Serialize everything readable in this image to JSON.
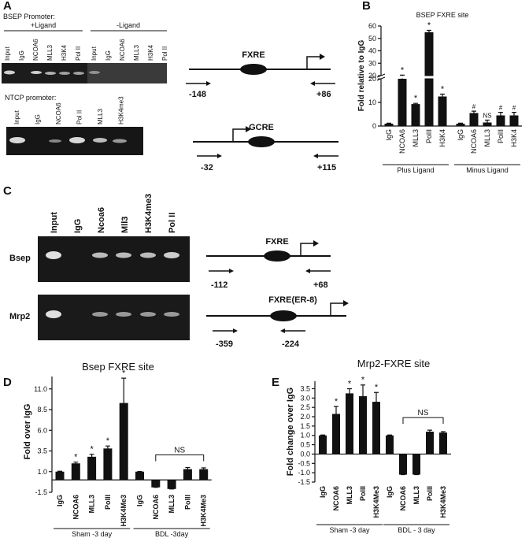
{
  "panels": {
    "A": {
      "letter": "A",
      "bsep": {
        "title": "BSEP Promoter:",
        "plus": "+Ligand",
        "minus": "-Ligand",
        "lanes": [
          "Input",
          "IgG",
          "NCOA6",
          "MLL3",
          "H3K4",
          "Pol II",
          "Input",
          "IgG",
          "NCOA6",
          "MLL3",
          "H3K4",
          "Pol II"
        ]
      },
      "ntcp": {
        "title": "NTCP promoter:",
        "lanes": [
          "Input",
          "IgG",
          "NCOA6",
          "Pol II",
          "MLL3",
          "H3K4me3"
        ]
      },
      "diagram1": {
        "element": "FXRE",
        "left": "-148",
        "right": "+86"
      },
      "diagram2": {
        "element": "GCRE",
        "left": "-32",
        "right": "+115"
      }
    },
    "C": {
      "letter": "C",
      "lanes": [
        "Input",
        "IgG",
        "Ncoa6",
        "Mll3",
        "H3K4me3",
        "Pol II"
      ],
      "rows": [
        "Bsep",
        "Mrp2"
      ],
      "diagram1": {
        "element": "FXRE",
        "left": "-112",
        "right": "+68"
      },
      "diagram2": {
        "element": "FXRE(ER-8)",
        "left": "-359",
        "right": "-224"
      }
    }
  },
  "chart_data": [
    {
      "panel": "B",
      "type": "bar",
      "title": "BSEP FXRE site",
      "y_label": "Fold relative to IgG",
      "categories": [
        "IgG",
        "NCOA6",
        "MLL3",
        "PolII",
        "H3K4",
        "IgG",
        "NCOA6",
        "MLL3",
        "PolII",
        "H3K4"
      ],
      "values": [
        1,
        20,
        9.3,
        55,
        12.5,
        1,
        5.5,
        1.5,
        4.5,
        4.5
      ],
      "errors": [
        0.2,
        0.4,
        0.3,
        1.5,
        1,
        0.2,
        0.8,
        1,
        1.3,
        1.3
      ],
      "annotations": [
        null,
        "*",
        "*",
        "*",
        "*",
        null,
        "#",
        "NS",
        "#",
        "#"
      ],
      "groups": [
        "Plus Ligand",
        "Minus Ligand"
      ],
      "color": "#111111",
      "segments": [
        {
          "ylim": [
            0,
            20
          ],
          "yticks": [
            0,
            10,
            20
          ]
        },
        {
          "ylim": [
            20,
            60
          ],
          "yticks": [
            20,
            30,
            40,
            50,
            60
          ]
        }
      ]
    },
    {
      "panel": "D",
      "type": "bar",
      "title": "Bsep FXRE site",
      "y_label": "Fold over IgG",
      "categories": [
        "IgG",
        "NCOA6",
        "MLL3",
        "PolII",
        "H3K4Me3",
        "IgG",
        "NCOA6",
        "MLL3",
        "PolII",
        "H3K4Me3"
      ],
      "values": [
        1,
        2,
        2.8,
        3.8,
        9.3,
        1,
        -0.9,
        -1.1,
        1.3,
        1.3
      ],
      "errors": [
        0.05,
        0.15,
        0.3,
        0.3,
        3,
        0.02,
        0,
        0,
        0.2,
        0.15
      ],
      "annotations": [
        null,
        "*",
        "*",
        "*",
        "*",
        null,
        null,
        null,
        null,
        null
      ],
      "bracket_label": "NS",
      "groups": [
        "Sham -3 day",
        "BDL -3day"
      ],
      "color": "#111111",
      "ylim": [
        -1.5,
        12.5
      ],
      "yticks": [
        -1.5,
        {
          "value": 1,
          "label": "1.0"
        },
        3.5,
        {
          "value": 6,
          "label": "6.0"
        },
        8.5,
        {
          "value": 11,
          "label": "11.0"
        }
      ]
    },
    {
      "panel": "E",
      "type": "bar",
      "title": "Mrp2-FXRE site",
      "y_label": "Fold change over IgG",
      "categories": [
        "IgG",
        "NCOA6",
        "MLL3",
        "PolII",
        "H3K4Me3",
        "IgG",
        "NCOA6",
        "MLL3",
        "PolII",
        "H3K4Me3"
      ],
      "values": [
        1,
        2.15,
        3.25,
        3.1,
        2.8,
        1,
        -1.1,
        -1.1,
        1.2,
        1.15
      ],
      "errors": [
        0.02,
        0.4,
        0.25,
        0.6,
        0.5,
        0.02,
        0,
        0,
        0.08,
        0.05
      ],
      "annotations": [
        null,
        "*",
        "*",
        "*",
        "*",
        null,
        null,
        null,
        null,
        null
      ],
      "bracket_label": "NS",
      "groups": [
        "Sham -3 day",
        "BDL - 3 day"
      ],
      "color": "#111111",
      "ylim": [
        -1.5,
        3.9
      ],
      "yticks": [
        -1.5,
        {
          "value": -1,
          "label": "-1.0"
        },
        -0.5,
        {
          "value": 0,
          "label": "0.0"
        },
        0.5,
        {
          "value": 1,
          "label": "1.0"
        },
        1.5,
        {
          "value": 2,
          "label": "2.0"
        },
        2.5,
        {
          "value": 3,
          "label": "3.0"
        },
        3.5
      ]
    }
  ]
}
